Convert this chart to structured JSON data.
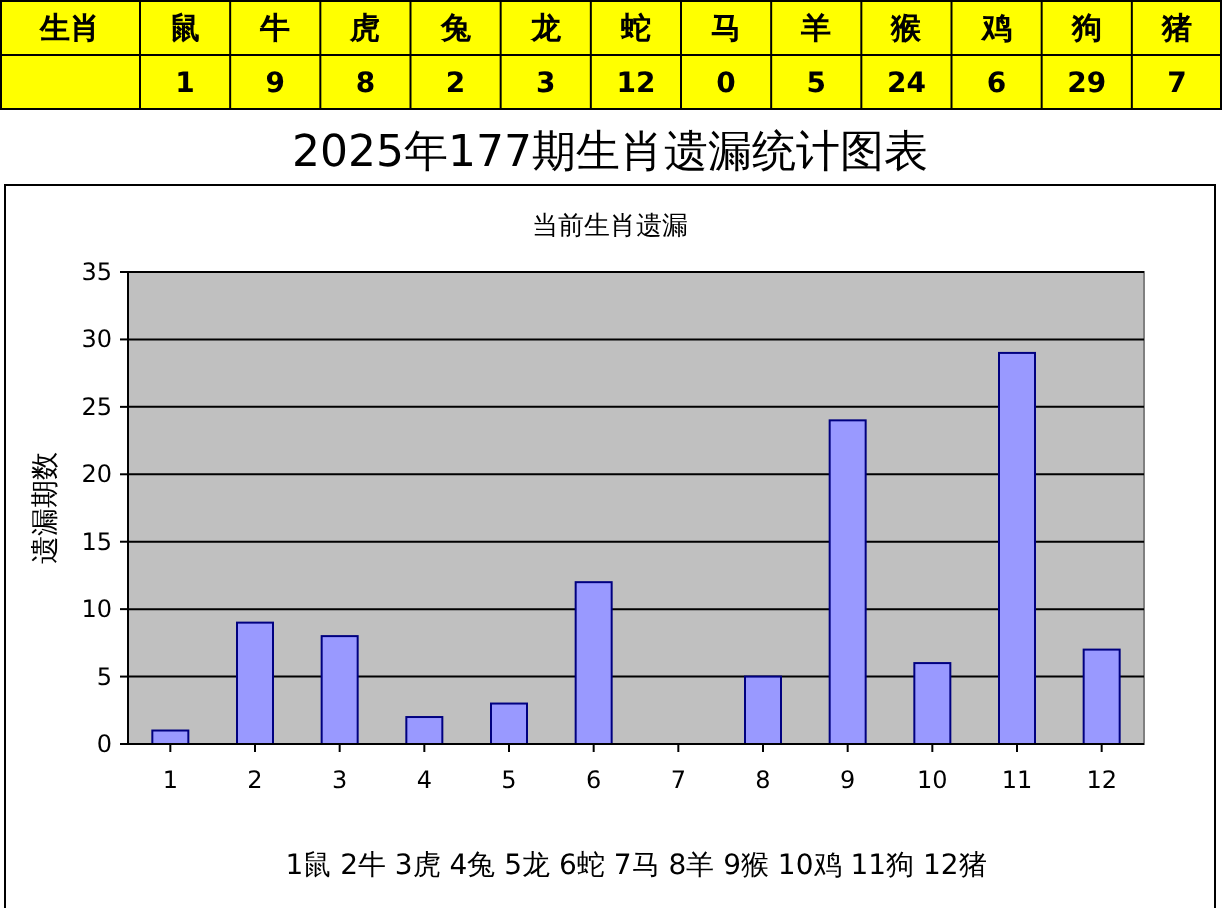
{
  "chart_data": [
    {
      "type": "other",
      "title": "生肖",
      "categories": [
        "鼠",
        "牛",
        "虎",
        "兔",
        "龙",
        "蛇",
        "马",
        "羊",
        "猴",
        "鸡",
        "狗",
        "猪"
      ],
      "values": [
        1,
        9,
        8,
        2,
        3,
        12,
        0,
        5,
        24,
        6,
        29,
        7
      ],
      "data_labels": true,
      "color": "#ffff00"
    },
    {
      "type": "bar",
      "title": "2025年177期生肖遗漏统计图表",
      "subtitle": "当前生肖遗漏",
      "ylabel": "遗漏期数",
      "categories": [
        "1",
        "2",
        "3",
        "4",
        "5",
        "6",
        "7",
        "8",
        "9",
        "10",
        "11",
        "12"
      ],
      "values": [
        1,
        9,
        8,
        2,
        3,
        12,
        0,
        5,
        24,
        6,
        29,
        7
      ],
      "color": "#9999ff",
      "ylim": [
        0,
        35
      ],
      "yticks": [
        0,
        5,
        10,
        15,
        20,
        25,
        30,
        35
      ],
      "grid": "y",
      "annotations": [
        "1鼠  2牛  3虎  4兔  5龙  6蛇  7马  8羊  9猴  10鸡  11狗  12猪"
      ]
    }
  ]
}
